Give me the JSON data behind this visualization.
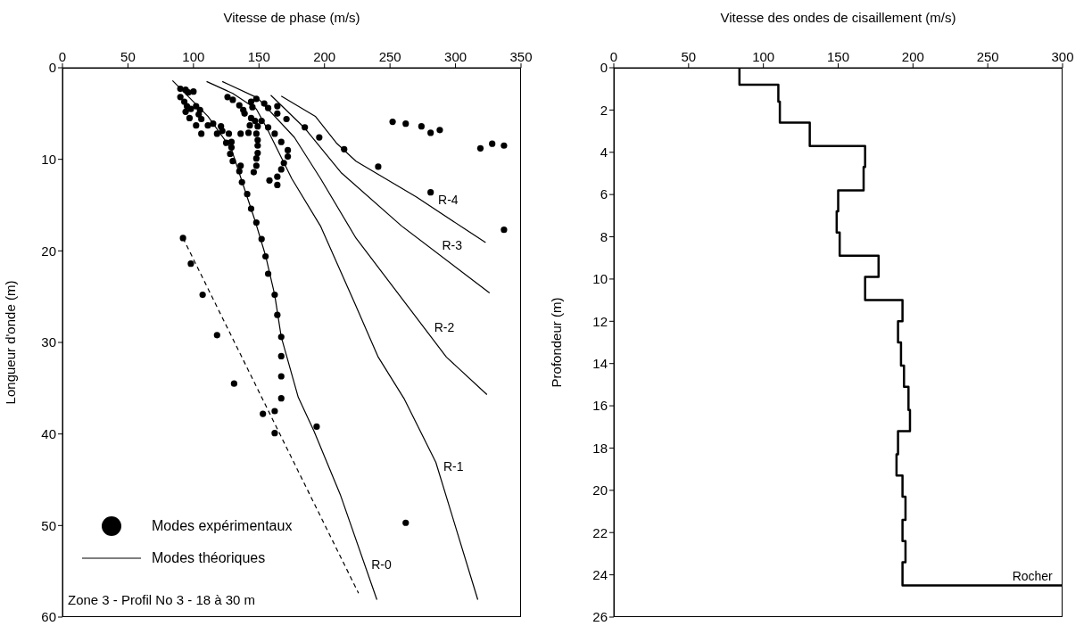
{
  "chart_data": [
    {
      "type": "line",
      "xlabel": "Vitesse de phase (m/s)",
      "ylabel": "Longueur d'onde (m)",
      "xlim": [
        0,
        350
      ],
      "xticks": [
        0,
        50,
        100,
        150,
        200,
        250,
        300,
        350
      ],
      "ylim": [
        60,
        0
      ],
      "yticks": [
        0,
        10,
        20,
        30,
        40,
        50,
        60
      ],
      "grid": false,
      "legend": "bottom left",
      "annotations": [
        "Zone 3 - Profil No 3 - 18 à 30 m",
        {
          "text": "R-4",
          "x": 284,
          "y": 15.4
        },
        {
          "text": "R-3",
          "x": 287,
          "y": 20.4
        },
        {
          "text": "R-2",
          "x": 281,
          "y": 29.3
        },
        {
          "text": "R-1",
          "x": 288,
          "y": 44.5
        },
        {
          "text": "R-0",
          "x": 233,
          "y": 55.2
        }
      ],
      "series": [
        {
          "type": "scatter",
          "name": "Modes expérimentaux",
          "color": "#000000",
          "marker": "circle",
          "x": [
            90,
            94,
            96,
            100,
            90,
            93,
            95,
            94,
            97,
            98,
            102,
            105,
            104,
            106,
            102,
            106,
            111,
            115,
            121,
            118,
            122,
            127,
            125,
            129,
            129,
            128,
            130,
            136,
            135,
            137,
            141,
            144,
            148,
            152,
            155,
            157,
            162,
            164,
            126,
            130,
            135,
            138,
            139,
            144,
            148,
            145,
            144,
            143,
            147,
            152,
            149,
            148,
            149,
            149,
            149,
            148,
            148,
            146,
            136,
            142,
            154,
            157,
            164,
            164,
            171,
            157,
            162,
            167,
            172,
            172,
            169,
            167,
            164,
            158,
            164,
            185,
            196,
            92,
            98,
            107,
            215,
            241,
            252,
            262,
            274,
            281,
            288,
            319,
            328,
            337,
            281,
            337,
            167,
            167,
            167,
            167,
            162,
            153,
            162,
            194,
            118,
            131,
            262
          ],
          "values": [
            2.3,
            2.4,
            2.7,
            2.6,
            3.2,
            3.7,
            4.2,
            4.8,
            5.5,
            4.5,
            4.2,
            4.6,
            5.1,
            5.6,
            6.3,
            7.2,
            6.3,
            6.1,
            6.4,
            7.2,
            6.9,
            7.2,
            8.2,
            8.1,
            8.7,
            9.4,
            10.2,
            10.7,
            11.3,
            12.5,
            13.8,
            15.4,
            16.9,
            18.7,
            20.6,
            22.5,
            24.8,
            27.0,
            3.2,
            3.5,
            4.1,
            4.6,
            5.0,
            3.7,
            3.4,
            4.3,
            5.5,
            6.3,
            5.8,
            5.8,
            6.4,
            7.2,
            7.9,
            8.5,
            9.3,
            9.9,
            10.7,
            11.4,
            7.2,
            7.1,
            3.9,
            4.4,
            4.2,
            5.0,
            5.6,
            6.5,
            7.2,
            8.1,
            9.0,
            9.7,
            10.4,
            11.1,
            11.9,
            12.3,
            12.8,
            6.5,
            7.6,
            18.6,
            21.4,
            24.8,
            8.9,
            10.8,
            5.9,
            6.1,
            6.4,
            7.1,
            6.8,
            8.8,
            8.3,
            8.5,
            13.6,
            17.7,
            29.4,
            31.5,
            33.7,
            36.1,
            37.5,
            37.8,
            39.9,
            39.2,
            29.2,
            34.5,
            49.7
          ]
        },
        {
          "color": "#000000",
          "x": [
            84,
            111,
            129,
            137,
            147,
            155,
            162,
            167,
            180,
            192,
            212,
            240
          ],
          "values": [
            1.4,
            5.3,
            8.9,
            12.4,
            16.7,
            20.5,
            24.8,
            29.4,
            36,
            39.7,
            46.6,
            58.1
          ]
        },
        {
          "name": "Modes théoriques",
          "color": "#000000",
          "x": [
            110,
            130,
            148,
            156,
            175,
            197,
            223,
            241,
            261,
            285,
            317
          ],
          "values": [
            1.5,
            2.8,
            4.5,
            6.6,
            12.1,
            17.3,
            25.7,
            31.6,
            36.2,
            43.1,
            58.1
          ]
        },
        {
          "color": "#000000",
          "x": [
            122,
            149,
            177,
            197,
            224,
            293,
            324
          ],
          "values": [
            1.5,
            3.3,
            7.6,
            12.1,
            18.6,
            31.6,
            35.7
          ]
        },
        {
          "color": "#000000",
          "x": [
            159,
            185,
            213,
            259,
            326
          ],
          "values": [
            3.0,
            6.6,
            11.5,
            17.3,
            24.6
          ]
        },
        {
          "color": "#000000",
          "x": [
            167,
            193,
            209,
            224,
            270,
            323
          ],
          "values": [
            3.1,
            5.3,
            8.2,
            10.2,
            14.1,
            19.1
          ]
        },
        {
          "color": "#000000",
          "line_style": "dashed",
          "x": [
            92,
            226
          ],
          "values": [
            18.6,
            57.4
          ]
        }
      ]
    },
    {
      "type": "line",
      "xlabel": "Vitesse des ondes de cisaillement (m/s)",
      "ylabel": "Profondeur (m)",
      "xlim": [
        0,
        300
      ],
      "xticks": [
        0,
        50,
        100,
        150,
        200,
        250,
        300
      ],
      "ylim": [
        26,
        0
      ],
      "yticks": [
        0,
        2,
        4,
        6,
        8,
        10,
        12,
        14,
        16,
        18,
        20,
        22,
        24,
        26
      ],
      "grid": false,
      "annotations": [
        {
          "text": "Rocher",
          "x": 264,
          "y": 24.5
        }
      ],
      "series": [
        {
          "color": "#000000",
          "x": [
            84,
            84,
            110,
            110,
            111,
            111,
            131,
            131,
            168,
            168,
            167,
            167,
            150,
            150,
            149,
            149,
            151,
            151,
            177,
            177,
            168,
            168,
            193,
            193,
            190,
            190,
            192,
            192,
            194,
            194,
            197,
            197,
            198,
            198,
            190,
            190,
            189,
            189,
            193,
            193,
            195,
            195,
            193,
            193,
            195,
            195,
            193,
            193,
            300
          ],
          "values": [
            0,
            0.8,
            0.8,
            1.6,
            1.6,
            2.6,
            2.6,
            3.7,
            3.7,
            4.7,
            4.7,
            5.8,
            5.8,
            6.8,
            6.8,
            7.8,
            7.8,
            8.9,
            8.9,
            9.9,
            9.9,
            11.0,
            11.0,
            12.0,
            12.0,
            13.0,
            13.0,
            14.1,
            14.1,
            15.1,
            15.1,
            16.2,
            16.2,
            17.2,
            17.2,
            18.3,
            18.3,
            19.3,
            19.3,
            20.3,
            20.3,
            21.4,
            21.4,
            22.4,
            22.4,
            23.4,
            23.4,
            24.5,
            24.5
          ]
        }
      ]
    }
  ]
}
